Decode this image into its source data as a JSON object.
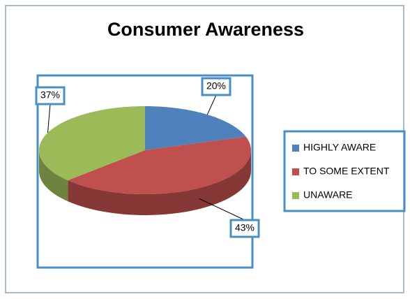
{
  "chart_data": {
    "type": "pie",
    "title": "Consumer Awareness",
    "categories": [
      "HIGHLY AWARE",
      "TO SOME EXTENT",
      "UNAWARE"
    ],
    "values": [
      20,
      43,
      37
    ],
    "value_labels": [
      "20%",
      "43%",
      "37%"
    ],
    "colors": [
      "#4f81bd",
      "#c0504d",
      "#9bbb59"
    ],
    "legend": "right"
  }
}
